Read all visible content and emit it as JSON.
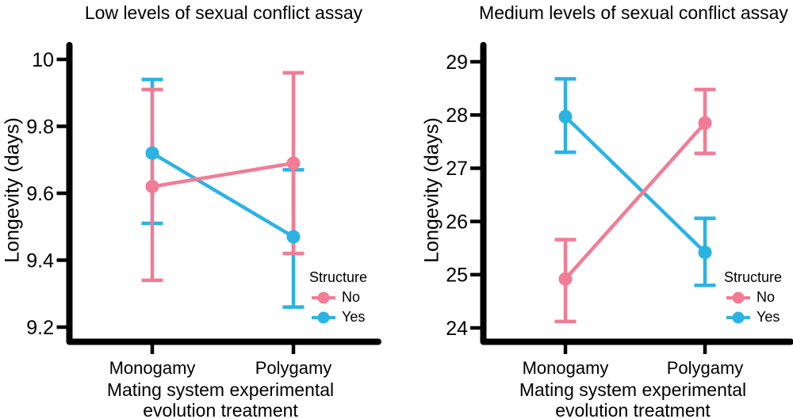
{
  "figure": {
    "y_axis_label": "Longevity (days)",
    "x_axis_label": "Mating system experimental\nevolution treatment",
    "legend": {
      "title": "Structure",
      "items": [
        {
          "label": "No",
          "color": "#F27C95"
        },
        {
          "label": "Yes",
          "color": "#2BB3E3"
        }
      ]
    },
    "colors": {
      "no": "#F27C95",
      "yes": "#2BB3E3",
      "axis": "#000000",
      "text": "#000000"
    }
  },
  "chart_data": [
    {
      "type": "line",
      "title": "Low levels of sexual conflict assay",
      "categories": [
        "Monogamy",
        "Polygamy"
      ],
      "xlabel": "Mating system experimental evolution treatment",
      "ylabel": "Longevity (days)",
      "ylim": [
        9.15,
        10.04
      ],
      "yticks": [
        "10",
        "9.8",
        "9.6",
        "9.4",
        "9.2"
      ],
      "ytick_values": [
        10,
        9.8,
        9.6,
        9.4,
        9.2
      ],
      "grid": false,
      "error_bars": true,
      "legend_position": "inside bottom-right",
      "series": [
        {
          "name": "No",
          "color": "#F27C95",
          "means": [
            9.62,
            9.69
          ],
          "ci_low": [
            9.34,
            9.42
          ],
          "ci_high": [
            9.91,
            9.96
          ]
        },
        {
          "name": "Yes",
          "color": "#2BB3E3",
          "means": [
            9.72,
            9.47
          ],
          "ci_low": [
            9.51,
            9.26
          ],
          "ci_high": [
            9.94,
            9.67
          ]
        }
      ]
    },
    {
      "type": "line",
      "title": "Medium levels of sexual conflict assay",
      "categories": [
        "Monogamy",
        "Polygamy"
      ],
      "xlabel": "Mating system experimental evolution treatment",
      "ylabel": "Longevity (days)",
      "ylim": [
        23.7,
        29.3
      ],
      "yticks": [
        "29",
        "28",
        "27",
        "26",
        "25",
        "24"
      ],
      "ytick_values": [
        29,
        28,
        27,
        26,
        25,
        24
      ],
      "grid": false,
      "error_bars": true,
      "legend_position": "inside bottom-right",
      "series": [
        {
          "name": "No",
          "color": "#F27C95",
          "means": [
            24.92,
            27.85
          ],
          "ci_low": [
            24.12,
            27.28
          ],
          "ci_high": [
            25.66,
            28.48
          ]
        },
        {
          "name": "Yes",
          "color": "#2BB3E3",
          "means": [
            27.97,
            25.42
          ],
          "ci_low": [
            27.3,
            24.8
          ],
          "ci_high": [
            28.68,
            26.06
          ]
        }
      ]
    }
  ]
}
